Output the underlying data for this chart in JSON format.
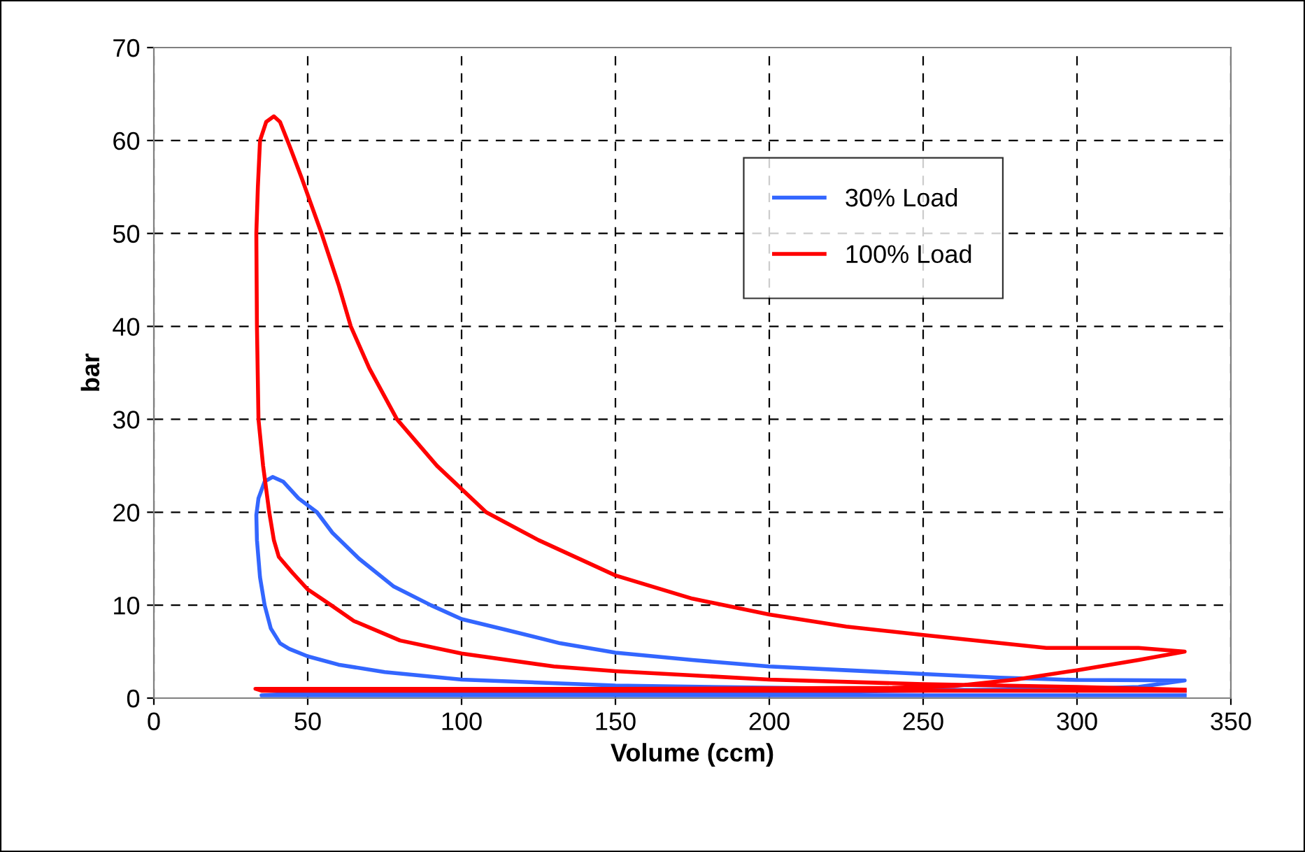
{
  "chart_data": {
    "type": "line",
    "xlabel": "Volume (ccm)",
    "ylabel": "bar",
    "xlim": [
      0,
      350
    ],
    "ylim": [
      0,
      70
    ],
    "xticks": [
      0,
      50,
      100,
      150,
      200,
      250,
      300,
      350
    ],
    "yticks": [
      0,
      10,
      20,
      30,
      40,
      50,
      60,
      70
    ],
    "grid": true,
    "legend": "top right",
    "marker": "none",
    "line_style": "solid",
    "series": [
      {
        "name": "30% Load",
        "color": "#3366ff",
        "x": [
          335,
          250,
          150,
          100,
          75,
          60,
          50,
          44,
          41,
          38,
          36,
          34.5,
          33.5,
          33.3,
          34,
          36,
          38.6,
          42,
          47,
          53,
          58,
          66.7,
          78,
          90,
          100,
          115,
          132,
          150,
          175,
          200,
          225,
          250,
          275,
          300,
          335,
          320,
          300,
          200,
          40,
          35,
          335
        ],
        "values": [
          0.8,
          0.9,
          1.35,
          2.0,
          2.8,
          3.6,
          4.5,
          5.3,
          5.9,
          7.5,
          10,
          13,
          17,
          19.7,
          21.5,
          23.3,
          23.8,
          23.3,
          21.5,
          20,
          17.8,
          15,
          12,
          10,
          8.5,
          7.3,
          5.9,
          4.9,
          4.1,
          3.4,
          3.0,
          2.6,
          2.2,
          1.95,
          1.9,
          1.2,
          1.0,
          0.6,
          0.4,
          0.3,
          0.3
        ]
      },
      {
        "name": "100% Load",
        "color": "#ff0000",
        "x": [
          335,
          300,
          250,
          200,
          150,
          130,
          100,
          80,
          65,
          57.6,
          50,
          45,
          40.6,
          39,
          37.5,
          35.5,
          34,
          33.5,
          33.3,
          33.8,
          34.5,
          36.5,
          39,
          41,
          44,
          48,
          54.5,
          60,
          64,
          70,
          79,
          92,
          108,
          125,
          150,
          175,
          200,
          225,
          250,
          270,
          290,
          320,
          335,
          320,
          300,
          280,
          260,
          240,
          150,
          33,
          35,
          335
        ],
        "values": [
          0.9,
          1.2,
          1.5,
          2.0,
          2.9,
          3.4,
          4.8,
          6.2,
          8.3,
          10,
          11.7,
          13.5,
          15.2,
          17,
          20,
          25,
          30,
          40,
          50,
          55,
          60,
          62,
          62.6,
          62,
          59.5,
          56,
          50,
          44.5,
          40,
          35.5,
          30,
          25,
          20,
          17,
          13.2,
          10.7,
          9,
          7.7,
          6.8,
          6.1,
          5.4,
          5.4,
          5,
          4.1,
          3,
          2,
          1.3,
          1.1,
          1.0,
          1.0,
          0.8,
          0.8
        ]
      }
    ]
  }
}
